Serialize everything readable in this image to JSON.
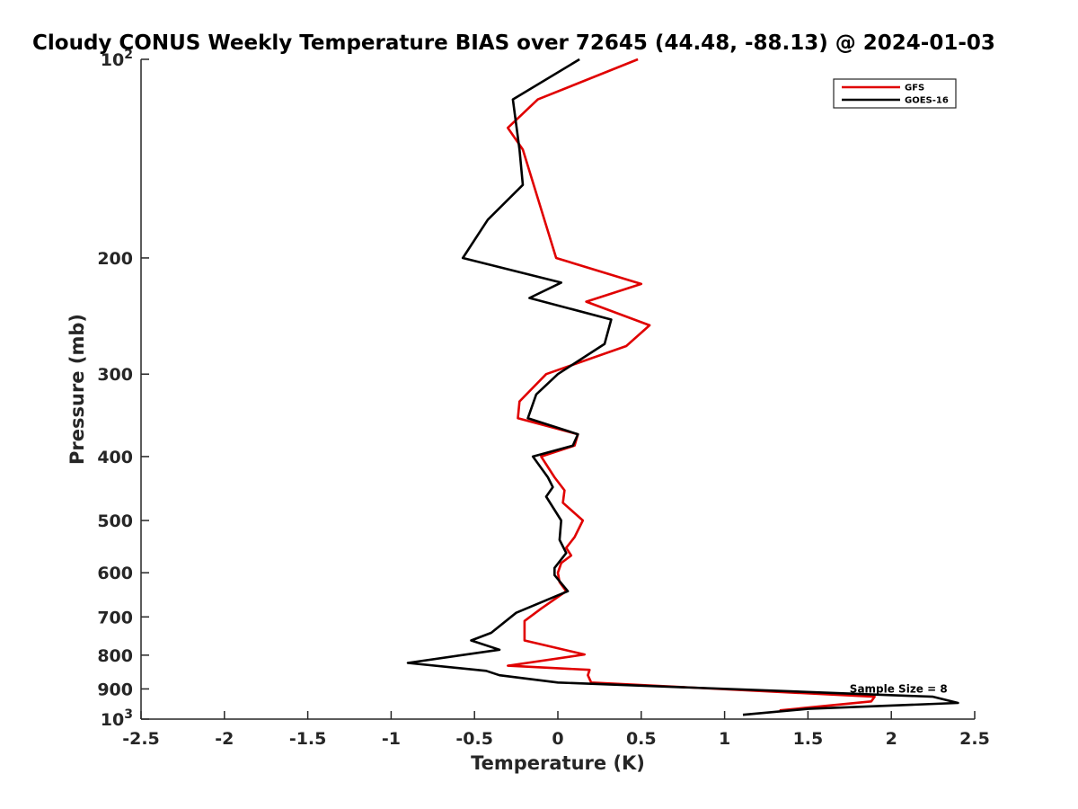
{
  "chart_data": {
    "type": "line",
    "title": "Cloudy CONUS Weekly Temperature BIAS over 72645 (44.48, -88.13) @ 2024-01-03",
    "xlabel": "Temperature (K)",
    "ylabel": "Pressure (mb)",
    "xlim": [
      -2.5,
      2.5
    ],
    "ylim": [
      100,
      1000
    ],
    "y_scale": "log",
    "y_reversed": true,
    "grid": false,
    "legend_position": "top-right",
    "x_ticks": [
      -2.5,
      -2,
      -1.5,
      -1,
      -0.5,
      0,
      0.5,
      1,
      1.5,
      2,
      2.5
    ],
    "x_tick_labels": [
      "-2.5",
      "-2",
      "-1.5",
      "-1",
      "-0.5",
      "0",
      "0.5",
      "1",
      "1.5",
      "2",
      "2.5"
    ],
    "y_ticks": [
      100,
      200,
      300,
      400,
      500,
      600,
      700,
      800,
      900,
      1000
    ],
    "y_tick_labels": [
      {
        "base": "10",
        "exp": "2"
      },
      {
        "base": "200",
        "exp": ""
      },
      {
        "base": "300",
        "exp": ""
      },
      {
        "base": "400",
        "exp": ""
      },
      {
        "base": "500",
        "exp": ""
      },
      {
        "base": "600",
        "exp": ""
      },
      {
        "base": "700",
        "exp": ""
      },
      {
        "base": "800",
        "exp": ""
      },
      {
        "base": "900",
        "exp": ""
      },
      {
        "base": "10",
        "exp": "3"
      }
    ],
    "annotation": "Sample Size = 8",
    "annotation_anchor": {
      "x": 1.75,
      "p": 900
    },
    "series": [
      {
        "name": "GFS",
        "color": "#e00000",
        "points": [
          [
            0.48,
            100
          ],
          [
            -0.12,
            115
          ],
          [
            -0.3,
            127
          ],
          [
            -0.21,
            137
          ],
          [
            -0.01,
            200
          ],
          [
            0.5,
            219
          ],
          [
            0.17,
            233
          ],
          [
            0.55,
            253
          ],
          [
            0.41,
            272
          ],
          [
            -0.07,
            300
          ],
          [
            -0.23,
            330
          ],
          [
            -0.24,
            350
          ],
          [
            0.12,
            370
          ],
          [
            0.1,
            385
          ],
          [
            -0.1,
            400
          ],
          [
            -0.02,
            430
          ],
          [
            0.04,
            450
          ],
          [
            0.03,
            470
          ],
          [
            0.15,
            500
          ],
          [
            0.1,
            530
          ],
          [
            0.05,
            550
          ],
          [
            0.08,
            565
          ],
          [
            0.02,
            580
          ],
          [
            0.0,
            600
          ],
          [
            0.01,
            620
          ],
          [
            0.05,
            640
          ],
          [
            -0.1,
            680
          ],
          [
            -0.2,
            710
          ],
          [
            -0.2,
            760
          ],
          [
            0.16,
            798
          ],
          [
            -0.3,
            830
          ],
          [
            0.19,
            842
          ],
          [
            0.18,
            858
          ],
          [
            0.2,
            880
          ],
          [
            1.9,
            925
          ],
          [
            1.88,
            940
          ],
          [
            1.33,
            970
          ]
        ]
      },
      {
        "name": "GOES-16",
        "color": "#000000",
        "points": [
          [
            0.13,
            100
          ],
          [
            -0.27,
            115
          ],
          [
            -0.23,
            137
          ],
          [
            -0.21,
            155
          ],
          [
            -0.42,
            175
          ],
          [
            -0.57,
            200
          ],
          [
            0.02,
            218
          ],
          [
            -0.17,
            230
          ],
          [
            0.32,
            248
          ],
          [
            0.28,
            270
          ],
          [
            0.0,
            300
          ],
          [
            -0.13,
            322
          ],
          [
            -0.18,
            350
          ],
          [
            0.12,
            370
          ],
          [
            0.09,
            385
          ],
          [
            -0.15,
            400
          ],
          [
            -0.06,
            430
          ],
          [
            -0.03,
            445
          ],
          [
            -0.07,
            460
          ],
          [
            0.02,
            500
          ],
          [
            0.01,
            535
          ],
          [
            0.05,
            560
          ],
          [
            -0.02,
            590
          ],
          [
            -0.02,
            605
          ],
          [
            0.06,
            640
          ],
          [
            -0.25,
            690
          ],
          [
            -0.4,
            740
          ],
          [
            -0.52,
            760
          ],
          [
            -0.35,
            785
          ],
          [
            -0.9,
            822
          ],
          [
            -0.43,
            845
          ],
          [
            -0.35,
            858
          ],
          [
            0.0,
            880
          ],
          [
            2.25,
            925
          ],
          [
            2.4,
            945
          ],
          [
            1.5,
            965
          ],
          [
            1.11,
            985
          ]
        ]
      }
    ]
  }
}
